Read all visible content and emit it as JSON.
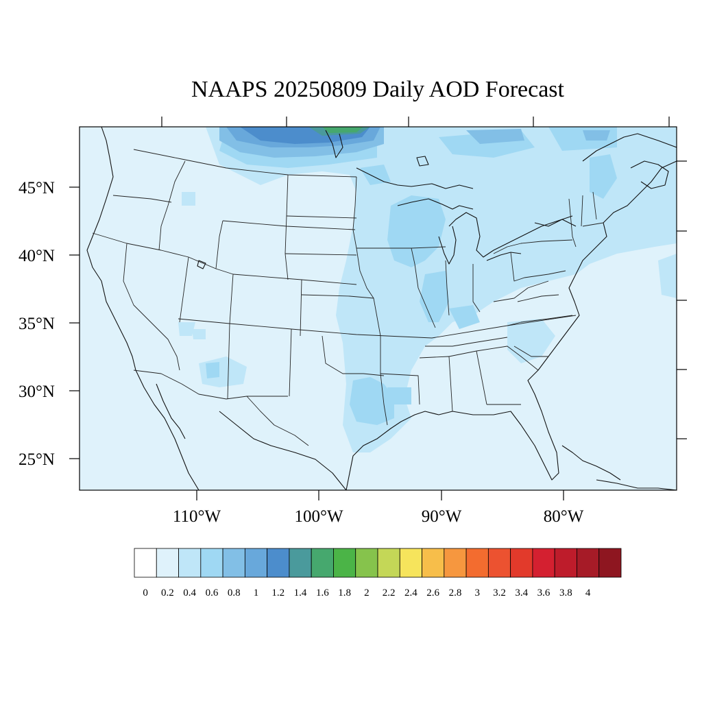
{
  "title": "NAAPS 20250809 Daily AOD Forecast",
  "lat_labels": [
    "45°N",
    "40°N",
    "35°N",
    "30°N",
    "25°N"
  ],
  "lon_labels": [
    "110°W",
    "100°W",
    "90°W",
    "80°W"
  ],
  "colorbar": {
    "labels": [
      "0",
      "0.2",
      "0.4",
      "0.6",
      "0.8",
      "1",
      "1.2",
      "1.4",
      "1.6",
      "1.8",
      "2",
      "2.2",
      "2.4",
      "2.6",
      "2.8",
      "3",
      "3.2",
      "3.4",
      "3.6",
      "3.8",
      "4"
    ],
    "colors": [
      "#ffffff",
      "#dff2fb",
      "#bfe6f8",
      "#9fd8f3",
      "#82bfe6",
      "#68a8db",
      "#4c8dcc",
      "#4a9a9c",
      "#46a86e",
      "#4bb447",
      "#86c34c",
      "#c4d757",
      "#f6e45c",
      "#f7be4a",
      "#f6973f",
      "#f36c2f",
      "#ec5230",
      "#e23a2b",
      "#d42030",
      "#be1c2b",
      "#a61b27",
      "#8e1620"
    ]
  },
  "aod_fields": {
    "background_level": "0-0.2",
    "moderate_region": "Great Lakes, Mississippi valley, Texas coast, Northeast and Canada border at 0.2-0.6",
    "highest_region": "Southern Canada north of Montana and Minnesota at 0.8-1.6"
  }
}
